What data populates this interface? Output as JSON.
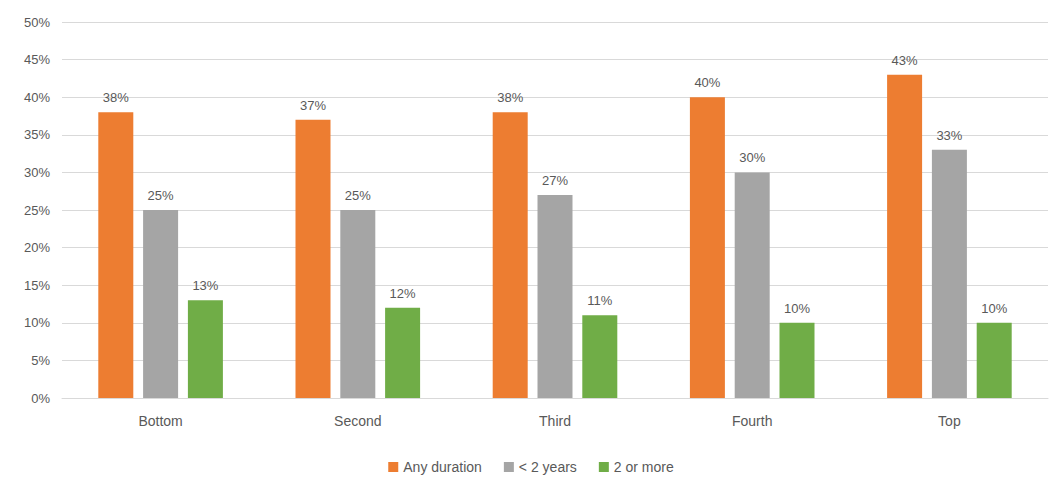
{
  "chart_data": {
    "type": "bar",
    "categories": [
      "Bottom",
      "Second",
      "Third",
      "Fourth",
      "Top"
    ],
    "series": [
      {
        "name": "Any duration",
        "color": "#ED7D31",
        "values": [
          38,
          37,
          38,
          40,
          43
        ],
        "value_labels": [
          "38%",
          "37%",
          "38%",
          "40%",
          "43%"
        ]
      },
      {
        "name": "< 2 years",
        "color": "#A5A5A5",
        "values": [
          25,
          25,
          27,
          30,
          33
        ],
        "value_labels": [
          "25%",
          "25%",
          "27%",
          "30%",
          "33%"
        ]
      },
      {
        "name": "2 or more",
        "color": "#70AD47",
        "values": [
          13,
          12,
          11,
          10,
          10
        ],
        "value_labels": [
          "13%",
          "12%",
          "11%",
          "10%",
          "10%"
        ]
      }
    ],
    "ylim": [
      0,
      50
    ],
    "yticks": [
      {
        "value": 0,
        "label": "0%"
      },
      {
        "value": 5,
        "label": "5%"
      },
      {
        "value": 10,
        "label": "10%"
      },
      {
        "value": 15,
        "label": "15%"
      },
      {
        "value": 20,
        "label": "20%"
      },
      {
        "value": 25,
        "label": "25%"
      },
      {
        "value": 30,
        "label": "30%"
      },
      {
        "value": 35,
        "label": "35%"
      },
      {
        "value": 40,
        "label": "40%"
      },
      {
        "value": 45,
        "label": "45%"
      },
      {
        "value": 50,
        "label": "50%"
      }
    ],
    "grid": true,
    "legend": "bottom",
    "data_labels": true
  }
}
